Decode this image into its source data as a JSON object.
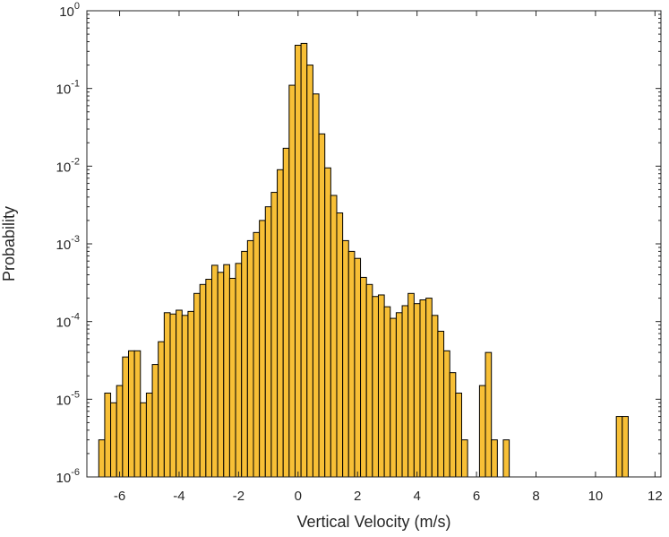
{
  "chart_data": {
    "type": "bar",
    "xlabel": "Vertical Velocity (m/s)",
    "ylabel": "Probability",
    "xlim": [
      -7.1,
      12.2
    ],
    "ylim": [
      1e-06,
      1
    ],
    "yscale": "log",
    "grid": false,
    "bar_color": "#F7BF36",
    "edge_color": "#000000",
    "xticks": [
      -6,
      -4,
      -2,
      0,
      2,
      4,
      6,
      8,
      10,
      12
    ],
    "xtick_labels": [
      "-6",
      "-4",
      "-2",
      "0",
      "2",
      "4",
      "6",
      "8",
      "10",
      "12"
    ],
    "yticks": [
      {
        "value": 1e-06,
        "base": "10",
        "exp": "-6"
      },
      {
        "value": 1e-05,
        "base": "10",
        "exp": "-5"
      },
      {
        "value": 0.0001,
        "base": "10",
        "exp": "-4"
      },
      {
        "value": 0.001,
        "base": "10",
        "exp": "-3"
      },
      {
        "value": 0.01,
        "base": "10",
        "exp": "-2"
      },
      {
        "value": 0.1,
        "base": "10",
        "exp": "-1"
      },
      {
        "value": 1,
        "base": "10",
        "exp": "0"
      }
    ],
    "bin_width": 0.2,
    "bars": [
      {
        "x": -6.6,
        "y": 3e-06
      },
      {
        "x": -6.4,
        "y": 1.2e-05
      },
      {
        "x": -6.2,
        "y": 9e-06
      },
      {
        "x": -6.0,
        "y": 1.5e-05
      },
      {
        "x": -5.8,
        "y": 3.5e-05
      },
      {
        "x": -5.6,
        "y": 4.2e-05
      },
      {
        "x": -5.4,
        "y": 4.2e-05
      },
      {
        "x": -5.2,
        "y": 9e-06
      },
      {
        "x": -5.0,
        "y": 1.2e-05
      },
      {
        "x": -4.8,
        "y": 2.8e-05
      },
      {
        "x": -4.6,
        "y": 5.5e-05
      },
      {
        "x": -4.4,
        "y": 0.00013
      },
      {
        "x": -4.2,
        "y": 0.000125
      },
      {
        "x": -4.0,
        "y": 0.00014
      },
      {
        "x": -3.8,
        "y": 0.00012
      },
      {
        "x": -3.6,
        "y": 0.000135
      },
      {
        "x": -3.4,
        "y": 0.00023
      },
      {
        "x": -3.2,
        "y": 0.0003
      },
      {
        "x": -3.0,
        "y": 0.00035
      },
      {
        "x": -2.8,
        "y": 0.00053
      },
      {
        "x": -2.6,
        "y": 0.00043
      },
      {
        "x": -2.4,
        "y": 0.00054
      },
      {
        "x": -2.2,
        "y": 0.00036
      },
      {
        "x": -2.0,
        "y": 0.00056
      },
      {
        "x": -1.8,
        "y": 0.0008
      },
      {
        "x": -1.6,
        "y": 0.0011
      },
      {
        "x": -1.4,
        "y": 0.0014
      },
      {
        "x": -1.2,
        "y": 0.002
      },
      {
        "x": -1.0,
        "y": 0.003
      },
      {
        "x": -0.8,
        "y": 0.0046
      },
      {
        "x": -0.6,
        "y": 0.009
      },
      {
        "x": -0.4,
        "y": 0.017
      },
      {
        "x": -0.2,
        "y": 0.11
      },
      {
        "x": 0.0,
        "y": 0.36
      },
      {
        "x": 0.2,
        "y": 0.38
      },
      {
        "x": 0.4,
        "y": 0.2
      },
      {
        "x": 0.6,
        "y": 0.085
      },
      {
        "x": 0.8,
        "y": 0.026
      },
      {
        "x": 1.0,
        "y": 0.0095
      },
      {
        "x": 1.2,
        "y": 0.0042
      },
      {
        "x": 1.4,
        "y": 0.0025
      },
      {
        "x": 1.6,
        "y": 0.0011
      },
      {
        "x": 1.8,
        "y": 0.0008
      },
      {
        "x": 2.0,
        "y": 0.00065
      },
      {
        "x": 2.2,
        "y": 0.00037
      },
      {
        "x": 2.4,
        "y": 0.0003
      },
      {
        "x": 2.6,
        "y": 0.00021
      },
      {
        "x": 2.8,
        "y": 0.00022
      },
      {
        "x": 3.0,
        "y": 0.000155
      },
      {
        "x": 3.2,
        "y": 0.00011
      },
      {
        "x": 3.4,
        "y": 0.00013
      },
      {
        "x": 3.6,
        "y": 0.00016
      },
      {
        "x": 3.8,
        "y": 0.00023
      },
      {
        "x": 4.0,
        "y": 0.00017
      },
      {
        "x": 4.2,
        "y": 0.00019
      },
      {
        "x": 4.4,
        "y": 0.0002
      },
      {
        "x": 4.6,
        "y": 0.00012
      },
      {
        "x": 4.8,
        "y": 7.5e-05
      },
      {
        "x": 5.0,
        "y": 4.2e-05
      },
      {
        "x": 5.2,
        "y": 2.2e-05
      },
      {
        "x": 5.4,
        "y": 1.2e-05
      },
      {
        "x": 5.6,
        "y": 3e-06
      },
      {
        "x": 6.2,
        "y": 1.5e-05
      },
      {
        "x": 6.4,
        "y": 4e-05
      },
      {
        "x": 6.6,
        "y": 3e-06
      },
      {
        "x": 7.0,
        "y": 3e-06
      },
      {
        "x": 10.8,
        "y": 6e-06
      },
      {
        "x": 11.0,
        "y": 6e-06
      }
    ]
  }
}
